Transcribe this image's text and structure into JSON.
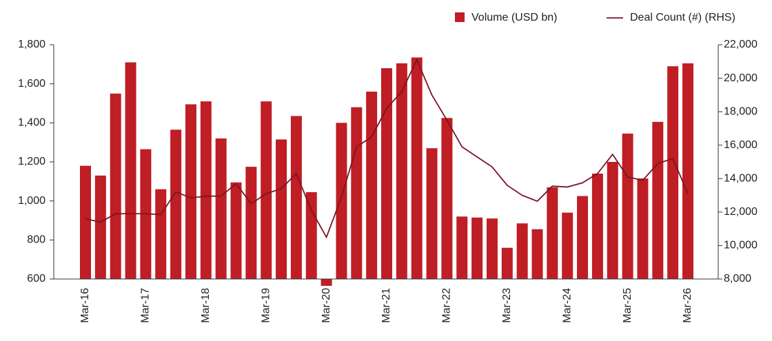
{
  "chart_data": {
    "type": "bar_line",
    "categories": [
      "Mar-16",
      null,
      null,
      null,
      "Mar-17",
      null,
      null,
      null,
      "Mar-18",
      null,
      null,
      null,
      "Mar-19",
      null,
      null,
      null,
      "Mar-20",
      null,
      null,
      null,
      "Mar-21",
      null,
      null,
      null,
      "Mar-22",
      null,
      null,
      null,
      "Mar-23",
      null,
      null,
      null,
      "Mar-24",
      null,
      null,
      null,
      "Mar-25",
      null,
      null,
      null,
      "Mar-26"
    ],
    "series": [
      {
        "name": "Volume (USD bn)",
        "type": "bar",
        "color": "#bf1e24",
        "values": [
          1180,
          1130,
          1550,
          1710,
          1265,
          1060,
          1365,
          1495,
          1510,
          1320,
          1095,
          1175,
          1510,
          1315,
          1435,
          1045,
          565,
          1400,
          1480,
          1560,
          1680,
          1705,
          1735,
          1270,
          1425,
          920,
          915,
          910,
          760,
          885,
          855,
          1070,
          940,
          1025,
          1140,
          1200,
          1345,
          1115,
          1405,
          1690,
          1705
        ]
      },
      {
        "name": "Deal Count (#) (RHS)",
        "type": "line",
        "axis": "y2",
        "color": "#7b1426",
        "values": [
          11600,
          11400,
          11900,
          11900,
          11900,
          11850,
          13200,
          12850,
          12950,
          12950,
          13700,
          12500,
          13100,
          13400,
          14300,
          12100,
          10500,
          12900,
          15900,
          16500,
          18200,
          19200,
          21100,
          19000,
          17500,
          15900,
          15300,
          14700,
          13600,
          13000,
          12650,
          13550,
          13500,
          13750,
          14300,
          15450,
          14100,
          13900,
          14900,
          15200,
          13100
        ]
      }
    ],
    "ylim": [
      600,
      1800
    ],
    "yticks": [
      600,
      800,
      {
        "value": 1000,
        "label": "1,000"
      },
      {
        "value": 1200,
        "label": "1,200"
      },
      {
        "value": 1400,
        "label": "1,400"
      },
      {
        "value": 1600,
        "label": "1,600"
      },
      {
        "value": 1800,
        "label": "1,800"
      }
    ],
    "y2lim": [
      8000,
      22000
    ],
    "y2ticks": [
      {
        "value": 8000,
        "label": "8,000"
      },
      {
        "value": 10000,
        "label": "10,000"
      },
      {
        "value": 12000,
        "label": "12,000"
      },
      {
        "value": 14000,
        "label": "14,000"
      },
      {
        "value": 16000,
        "label": "16,000"
      },
      {
        "value": 18000,
        "label": "18,000"
      },
      {
        "value": 20000,
        "label": "20,000"
      },
      {
        "value": 22000,
        "label": "22,000"
      }
    ],
    "legend": "top-right"
  }
}
